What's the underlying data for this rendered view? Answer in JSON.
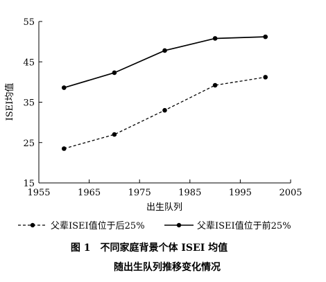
{
  "chart_data": {
    "type": "line",
    "xlabel": "出生队列",
    "ylabel": "ISEI均值",
    "xlim": [
      1955,
      2005
    ],
    "ylim": [
      15,
      55
    ],
    "xticks": [
      1955,
      1965,
      1975,
      1985,
      1995,
      2005
    ],
    "yticks": [
      15,
      25,
      35,
      45,
      55
    ],
    "grid": false,
    "legend_position": "bottom",
    "series": [
      {
        "name": "父辈ISEI值位于后25%",
        "line_style": "dashed",
        "marker": "circle",
        "color": "#000000",
        "x": [
          1960,
          1970,
          1980,
          1990,
          2000
        ],
        "y": [
          23.5,
          27.0,
          33.0,
          39.2,
          41.2
        ]
      },
      {
        "name": "父辈ISEI值位于前25%",
        "line_style": "solid",
        "marker": "circle",
        "color": "#000000",
        "x": [
          1960,
          1970,
          1980,
          1990,
          2000
        ],
        "y": [
          38.6,
          42.3,
          47.8,
          50.8,
          51.2
        ]
      }
    ]
  },
  "caption": {
    "line1": "图 1　不同家庭背景个体 ISEI 均值",
    "line2": "随出生队列推移变化情况"
  }
}
